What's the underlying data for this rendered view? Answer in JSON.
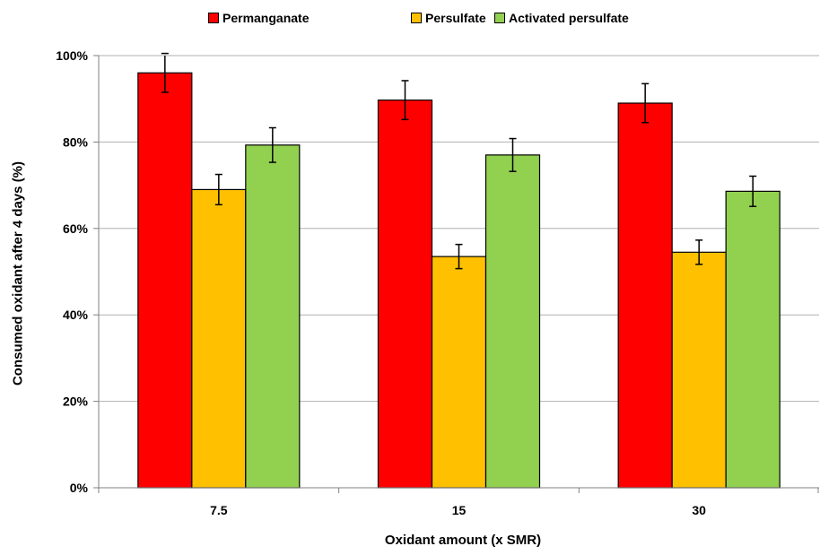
{
  "chart_data": {
    "type": "bar",
    "xlabel": "Oxidant amount (x SMR)",
    "ylabel": "Consumed oxidant after 4 days (%)",
    "categories": [
      "7.5",
      "15",
      "30"
    ],
    "ylim": [
      0,
      100
    ],
    "yticks": [
      0,
      20,
      40,
      60,
      80,
      100
    ],
    "ytick_labels": [
      "0%",
      "20%",
      "40%",
      "60%",
      "80%",
      "100%"
    ],
    "grid": true,
    "legend_position": "top",
    "series": [
      {
        "name": "Permanganate",
        "color": "#ff0000",
        "values": [
          96,
          89.7,
          89
        ],
        "errors": [
          4.5,
          4.5,
          4.5
        ]
      },
      {
        "name": "Persulfate",
        "color": "#ffc000",
        "values": [
          69,
          53.5,
          54.5
        ],
        "errors": [
          3.5,
          2.8,
          2.8
        ]
      },
      {
        "name": "Activated persulfate",
        "color": "#92d050",
        "values": [
          79.3,
          77,
          68.6
        ],
        "errors": [
          4,
          3.8,
          3.5
        ]
      }
    ]
  }
}
